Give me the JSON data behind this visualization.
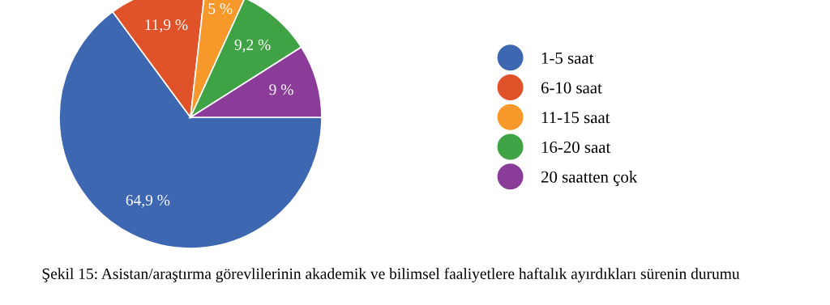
{
  "chart_data": {
    "type": "pie",
    "categories": [
      "1-5 saat",
      "6-10 saat",
      "11-15 saat",
      "16-20 saat",
      "20 saatten çok"
    ],
    "values": [
      64.9,
      11.9,
      5,
      9.2,
      9
    ],
    "value_labels": [
      "64,9 %",
      "11,9 %",
      "5 %",
      "9,2 %",
      "9 %"
    ],
    "colors": [
      "#3d67b1",
      "#e0522a",
      "#f7992a",
      "#3fa345",
      "#8a3c98"
    ],
    "legend": "right",
    "annotations": [
      "Şekil 15: Asistan/araştırma görevlilerinin akademik ve bilimsel faaliyetlere haftalık ayırdıkları sürenin durumu"
    ]
  }
}
